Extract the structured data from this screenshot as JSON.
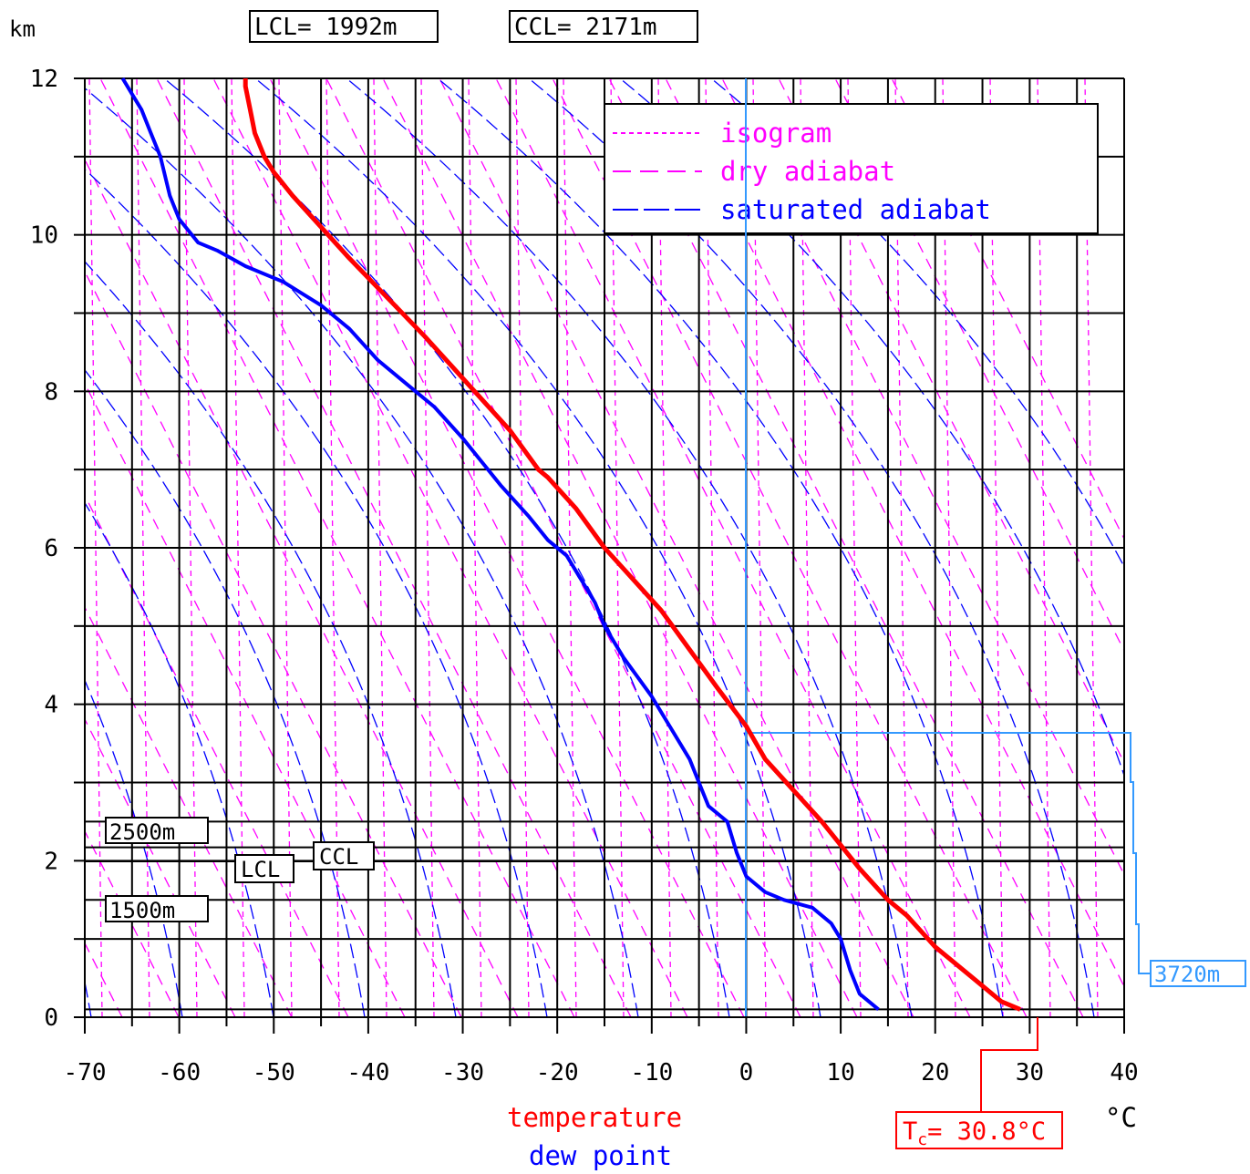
{
  "header": {
    "y_unit": "km",
    "lcl_box": "LCL= 1992m",
    "ccl_box": "CCL= 2171m"
  },
  "legend": {
    "isogram": "isogram",
    "dry_adiabat": "dry adiabat",
    "saturated_adiabat": "saturated adiabat"
  },
  "markers": {
    "m2500": "2500m",
    "m1500": "1500m",
    "lcl": "LCL",
    "ccl": "CCL",
    "m3720": "3720m",
    "tc_prefix": "T",
    "tc_sub": "c",
    "tc_value": "= 30.8°C"
  },
  "footer": {
    "temperature": "temperature",
    "dew_point": "dew point",
    "x_unit": "°C"
  },
  "colors": {
    "temperature": "#ff0000",
    "dew_point": "#0000ff",
    "isogram": "#ff00ff",
    "dry_adiabat": "#ff00ff",
    "saturated_adiabat": "#0000ff",
    "marker_3720": "#3399ff"
  },
  "chart_data": {
    "type": "line",
    "xlabel": "°C",
    "ylabel": "km",
    "xlim": [
      -70,
      40
    ],
    "ylim": [
      0,
      12
    ],
    "x_ticks": [
      "-70",
      "-60",
      "-50",
      "-40",
      "-30",
      "-20",
      "-10",
      "0",
      "10",
      "20",
      "30",
      "40"
    ],
    "y_ticks": [
      "0",
      "2",
      "4",
      "6",
      "8",
      "10",
      "12"
    ],
    "extra_levels_km": [
      1.5,
      2.5
    ],
    "lcl_km": 1.992,
    "ccl_km": 2.171,
    "tc_c": 30.8,
    "top_km": 3.72,
    "series": [
      {
        "name": "temperature",
        "color": "#ff0000",
        "points": [
          [
            29,
            0.1
          ],
          [
            27,
            0.2
          ],
          [
            24,
            0.5
          ],
          [
            20,
            0.9
          ],
          [
            17,
            1.3
          ],
          [
            15,
            1.5
          ],
          [
            12,
            1.9
          ],
          [
            10,
            2.2
          ],
          [
            8,
            2.5
          ],
          [
            5,
            2.9
          ],
          [
            2,
            3.3
          ],
          [
            0,
            3.72
          ],
          [
            -3,
            4.2
          ],
          [
            -6,
            4.7
          ],
          [
            -9,
            5.2
          ],
          [
            -12,
            5.6
          ],
          [
            -15,
            6.0
          ],
          [
            -18,
            6.5
          ],
          [
            -21,
            6.9
          ],
          [
            -22,
            7.0
          ],
          [
            -25,
            7.5
          ],
          [
            -28,
            7.9
          ],
          [
            -31,
            8.3
          ],
          [
            -34,
            8.7
          ],
          [
            -38,
            9.2
          ],
          [
            -42,
            9.7
          ],
          [
            -45,
            10.1
          ],
          [
            -48,
            10.5
          ],
          [
            -50,
            10.8
          ],
          [
            -51,
            11.0
          ],
          [
            -52,
            11.3
          ],
          [
            -52.5,
            11.6
          ],
          [
            -53,
            11.9
          ],
          [
            -53,
            12.0
          ]
        ]
      },
      {
        "name": "dew point",
        "color": "#0000ff",
        "points": [
          [
            14,
            0.1
          ],
          [
            12,
            0.3
          ],
          [
            11,
            0.6
          ],
          [
            10,
            1.0
          ],
          [
            9,
            1.2
          ],
          [
            7,
            1.4
          ],
          [
            4,
            1.5
          ],
          [
            2,
            1.6
          ],
          [
            0,
            1.8
          ],
          [
            -1,
            2.1
          ],
          [
            -2,
            2.5
          ],
          [
            -4,
            2.7
          ],
          [
            -5,
            3.0
          ],
          [
            -6,
            3.3
          ],
          [
            -8,
            3.7
          ],
          [
            -10,
            4.1
          ],
          [
            -13,
            4.6
          ],
          [
            -15,
            5.0
          ],
          [
            -16,
            5.3
          ],
          [
            -18,
            5.7
          ],
          [
            -19,
            5.9
          ],
          [
            -21,
            6.1
          ],
          [
            -23,
            6.4
          ],
          [
            -26,
            6.8
          ],
          [
            -28,
            7.1
          ],
          [
            -30,
            7.4
          ],
          [
            -33,
            7.8
          ],
          [
            -36,
            8.1
          ],
          [
            -39,
            8.4
          ],
          [
            -42,
            8.8
          ],
          [
            -45,
            9.1
          ],
          [
            -49,
            9.4
          ],
          [
            -53,
            9.6
          ],
          [
            -56,
            9.8
          ],
          [
            -58,
            9.9
          ],
          [
            -60,
            10.2
          ],
          [
            -61,
            10.5
          ],
          [
            -62,
            11.0
          ],
          [
            -63,
            11.3
          ],
          [
            -64,
            11.6
          ],
          [
            -65,
            11.8
          ],
          [
            -66,
            12.0
          ]
        ]
      }
    ]
  }
}
